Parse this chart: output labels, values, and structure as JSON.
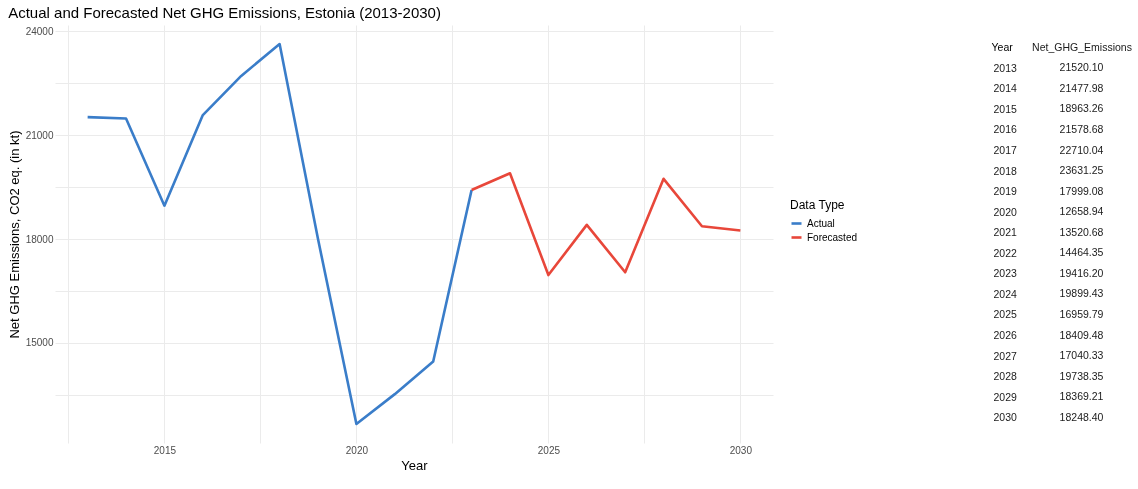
{
  "chart_data": [
    {
      "type": "line",
      "title": "Actual and Forecasted Net GHG Emissions, Estonia (2013-2030)",
      "xlabel": "Year",
      "ylabel": "Net GHG Emissions, CO2 eq. (in kt)",
      "legend_title": "Data Type",
      "legend": "right",
      "grid": true,
      "xlim": [
        2012.15,
        2030.85
      ],
      "xticks": [
        {
          "value": 2012.5,
          "label": null
        },
        2015,
        {
          "value": 2017.5,
          "label": null
        },
        2020,
        {
          "value": 2022.5,
          "label": null
        },
        2025,
        {
          "value": 2027.5,
          "label": null
        },
        2030
      ],
      "ylim": [
        12110,
        24180
      ],
      "yticks": [
        {
          "value": 13500,
          "label": null
        },
        15000,
        {
          "value": 16500,
          "label": null
        },
        18000,
        {
          "value": 19500,
          "label": null
        },
        21000,
        {
          "value": 22500,
          "label": null
        },
        24000
      ],
      "series": [
        {
          "name": "Actual",
          "color": "#3a7dc9",
          "x": [
            2013,
            2014,
            2015,
            2016,
            2017,
            2018,
            2019,
            2020,
            2021,
            2022,
            2023
          ],
          "values": [
            21520.1,
            21477.98,
            18963.26,
            21578.68,
            22710.04,
            23631.25,
            17999.08,
            12658.94,
            13520.68,
            14464.35,
            19416.2
          ]
        },
        {
          "name": "Forecasted",
          "color": "#e8473a",
          "x": [
            2023,
            2024,
            2025,
            2026,
            2027,
            2028,
            2029,
            2030
          ],
          "values": [
            19416.2,
            19899.43,
            16959.79,
            18409.48,
            17040.33,
            19738.35,
            18369.21,
            18248.4
          ]
        }
      ]
    },
    {
      "type": "heatmap",
      "ylabel": "Year",
      "categories": [
        "Net_GHG_Emissions"
      ],
      "y_categories": [
        "2013",
        "2014",
        "2015",
        "2016",
        "2017",
        "2018",
        "2019",
        "2020",
        "2021",
        "2022",
        "2023",
        "2024",
        "2025",
        "2026",
        "2027",
        "2028",
        "2029",
        "2030"
      ],
      "cells": [
        [
          21520.1
        ],
        [
          21477.98
        ],
        [
          18963.26
        ],
        [
          21578.68
        ],
        [
          22710.04
        ],
        [
          23631.25
        ],
        [
          17999.08
        ],
        [
          12658.94
        ],
        [
          13520.68
        ],
        [
          14464.35
        ],
        [
          19416.2
        ],
        [
          19899.43
        ],
        [
          16959.79
        ],
        [
          18409.48
        ],
        [
          17040.33
        ],
        [
          19738.35
        ],
        [
          18369.21
        ],
        [
          18248.4
        ]
      ],
      "cell_labels": [
        [
          "21520.10"
        ],
        [
          "21477.98"
        ],
        [
          "18963.26"
        ],
        [
          "21578.68"
        ],
        [
          "22710.04"
        ],
        [
          "23631.25"
        ],
        [
          "17999.08"
        ],
        [
          "12658.94"
        ],
        [
          "13520.68"
        ],
        [
          "14464.35"
        ],
        [
          "19416.20"
        ],
        [
          "19899.43"
        ],
        [
          "16959.79"
        ],
        [
          "18409.48"
        ],
        [
          "17040.33"
        ],
        [
          "19738.35"
        ],
        [
          "18369.21"
        ],
        [
          "18248.40"
        ]
      ]
    }
  ]
}
